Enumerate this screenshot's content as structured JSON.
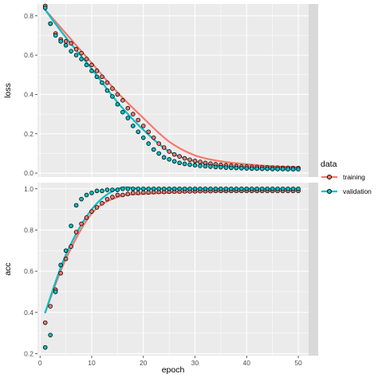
{
  "chart_data": {
    "type": "line",
    "title": "",
    "xlabel": "epoch",
    "x_ticks": [
      0,
      10,
      20,
      30,
      40,
      50
    ],
    "xlim": [
      -0.5,
      52
    ],
    "grid": true,
    "legend": {
      "title": "data",
      "placement": "right",
      "entries": [
        {
          "label": "training",
          "color": "#F8766D"
        },
        {
          "label": "validation",
          "color": "#00BFC4"
        }
      ]
    },
    "colors": {
      "training": "#F8766D",
      "validation": "#00BFC4"
    },
    "panels": [
      {
        "name": "loss",
        "ylabel": "loss",
        "ylim": [
          -0.02,
          0.86
        ],
        "y_ticks": [
          0.0,
          0.2,
          0.4,
          0.6,
          0.8
        ],
        "y_tick_labels": [
          "0.0",
          "0.2",
          "0.4",
          "0.6",
          "0.8"
        ],
        "series": [
          {
            "name": "training",
            "points": [
              [
                1,
                0.85
              ],
              [
                2,
                0.76
              ],
              [
                3,
                0.71
              ],
              [
                4,
                0.68
              ],
              [
                5,
                0.67
              ],
              [
                6,
                0.66
              ],
              [
                7,
                0.63
              ],
              [
                8,
                0.61
              ],
              [
                9,
                0.58
              ],
              [
                10,
                0.55
              ],
              [
                11,
                0.52
              ],
              [
                12,
                0.49
              ],
              [
                13,
                0.46
              ],
              [
                14,
                0.43
              ],
              [
                15,
                0.4
              ],
              [
                16,
                0.37
              ],
              [
                17,
                0.33
              ],
              [
                18,
                0.3
              ],
              [
                19,
                0.27
              ],
              [
                20,
                0.24
              ],
              [
                21,
                0.21
              ],
              [
                22,
                0.18
              ],
              [
                23,
                0.15
              ],
              [
                24,
                0.13
              ],
              [
                25,
                0.11
              ],
              [
                26,
                0.095
              ],
              [
                27,
                0.085
              ],
              [
                28,
                0.075
              ],
              [
                29,
                0.068
              ],
              [
                30,
                0.062
              ],
              [
                31,
                0.057
              ],
              [
                32,
                0.052
              ],
              [
                33,
                0.048
              ],
              [
                34,
                0.045
              ],
              [
                35,
                0.042
              ],
              [
                36,
                0.04
              ],
              [
                37,
                0.038
              ],
              [
                38,
                0.036
              ],
              [
                39,
                0.034
              ],
              [
                40,
                0.033
              ],
              [
                41,
                0.032
              ],
              [
                42,
                0.031
              ],
              [
                43,
                0.03
              ],
              [
                44,
                0.029
              ],
              [
                45,
                0.028
              ],
              [
                46,
                0.028
              ],
              [
                47,
                0.027
              ],
              [
                48,
                0.027
              ],
              [
                49,
                0.026
              ],
              [
                50,
                0.026
              ]
            ],
            "smooth": [
              [
                1,
                0.83
              ],
              [
                5,
                0.71
              ],
              [
                10,
                0.56
              ],
              [
                15,
                0.41
              ],
              [
                20,
                0.28
              ],
              [
                25,
                0.16
              ],
              [
                30,
                0.09
              ],
              [
                35,
                0.06
              ],
              [
                40,
                0.045
              ],
              [
                45,
                0.035
              ],
              [
                50,
                0.03
              ]
            ]
          },
          {
            "name": "validation",
            "points": [
              [
                1,
                0.84
              ],
              [
                2,
                0.76
              ],
              [
                3,
                0.7
              ],
              [
                4,
                0.67
              ],
              [
                5,
                0.65
              ],
              [
                6,
                0.62
              ],
              [
                7,
                0.6
              ],
              [
                8,
                0.58
              ],
              [
                9,
                0.55
              ],
              [
                10,
                0.52
              ],
              [
                11,
                0.49
              ],
              [
                12,
                0.46
              ],
              [
                13,
                0.42
              ],
              [
                14,
                0.39
              ],
              [
                15,
                0.35
              ],
              [
                16,
                0.31
              ],
              [
                17,
                0.28
              ],
              [
                18,
                0.24
              ],
              [
                19,
                0.21
              ],
              [
                20,
                0.18
              ],
              [
                21,
                0.15
              ],
              [
                22,
                0.12
              ],
              [
                23,
                0.1
              ],
              [
                24,
                0.08
              ],
              [
                25,
                0.07
              ],
              [
                26,
                0.06
              ],
              [
                27,
                0.052
              ],
              [
                28,
                0.047
              ],
              [
                29,
                0.043
              ],
              [
                30,
                0.04
              ],
              [
                31,
                0.037
              ],
              [
                32,
                0.035
              ],
              [
                33,
                0.033
              ],
              [
                34,
                0.031
              ],
              [
                35,
                0.03
              ],
              [
                36,
                0.028
              ],
              [
                37,
                0.027
              ],
              [
                38,
                0.026
              ],
              [
                39,
                0.025
              ],
              [
                40,
                0.024
              ],
              [
                41,
                0.023
              ],
              [
                42,
                0.023
              ],
              [
                43,
                0.022
              ],
              [
                44,
                0.022
              ],
              [
                45,
                0.021
              ],
              [
                46,
                0.021
              ],
              [
                47,
                0.021
              ],
              [
                48,
                0.02
              ],
              [
                49,
                0.02
              ],
              [
                50,
                0.02
              ]
            ],
            "smooth": [
              [
                1,
                0.83
              ],
              [
                5,
                0.69
              ],
              [
                10,
                0.53
              ],
              [
                15,
                0.36
              ],
              [
                20,
                0.22
              ],
              [
                25,
                0.11
              ],
              [
                30,
                0.06
              ],
              [
                35,
                0.035
              ],
              [
                40,
                0.025
              ],
              [
                45,
                0.02
              ],
              [
                50,
                0.018
              ]
            ]
          }
        ]
      },
      {
        "name": "acc",
        "ylabel": "acc",
        "ylim": [
          0.19,
          1.03
        ],
        "y_ticks": [
          0.2,
          0.4,
          0.6,
          0.8,
          1.0
        ],
        "y_tick_labels": [
          "0.2",
          "0.4",
          "0.6",
          "0.8",
          "1.0"
        ],
        "series": [
          {
            "name": "training",
            "points": [
              [
                1,
                0.35
              ],
              [
                2,
                0.43
              ],
              [
                3,
                0.51
              ],
              [
                4,
                0.59
              ],
              [
                5,
                0.66
              ],
              [
                6,
                0.72
              ],
              [
                7,
                0.79
              ],
              [
                8,
                0.83
              ],
              [
                9,
                0.86
              ],
              [
                10,
                0.89
              ],
              [
                11,
                0.91
              ],
              [
                12,
                0.93
              ],
              [
                13,
                0.95
              ],
              [
                14,
                0.96
              ],
              [
                15,
                0.97
              ],
              [
                16,
                0.97
              ],
              [
                17,
                0.975
              ],
              [
                18,
                0.98
              ],
              [
                19,
                0.98
              ],
              [
                20,
                0.982
              ],
              [
                21,
                0.983
              ],
              [
                22,
                0.984
              ],
              [
                23,
                0.985
              ],
              [
                24,
                0.985
              ],
              [
                25,
                0.986
              ],
              [
                26,
                0.987
              ],
              [
                27,
                0.987
              ],
              [
                28,
                0.988
              ],
              [
                29,
                0.988
              ],
              [
                30,
                0.988
              ],
              [
                31,
                0.989
              ],
              [
                32,
                0.989
              ],
              [
                33,
                0.989
              ],
              [
                34,
                0.99
              ],
              [
                35,
                0.99
              ],
              [
                36,
                0.99
              ],
              [
                37,
                0.99
              ],
              [
                38,
                0.99
              ],
              [
                39,
                0.99
              ],
              [
                40,
                0.99
              ],
              [
                41,
                0.99
              ],
              [
                42,
                0.99
              ],
              [
                43,
                0.99
              ],
              [
                44,
                0.99
              ],
              [
                45,
                0.99
              ],
              [
                46,
                0.99
              ],
              [
                47,
                0.99
              ],
              [
                48,
                0.99
              ],
              [
                49,
                0.99
              ],
              [
                50,
                0.99
              ]
            ],
            "smooth": [
              [
                1,
                0.4
              ],
              [
                5,
                0.66
              ],
              [
                10,
                0.88
              ],
              [
                15,
                0.96
              ],
              [
                20,
                0.975
              ],
              [
                30,
                0.985
              ],
              [
                40,
                0.988
              ],
              [
                50,
                0.99
              ]
            ]
          },
          {
            "name": "validation",
            "points": [
              [
                1,
                0.23
              ],
              [
                2,
                0.29
              ],
              [
                3,
                0.5
              ],
              [
                4,
                0.63
              ],
              [
                5,
                0.7
              ],
              [
                6,
                0.82
              ],
              [
                7,
                0.92
              ],
              [
                8,
                0.95
              ],
              [
                9,
                0.97
              ],
              [
                10,
                0.98
              ],
              [
                11,
                0.99
              ],
              [
                12,
                0.99
              ],
              [
                13,
                0.995
              ],
              [
                14,
                0.995
              ],
              [
                15,
                0.995
              ],
              [
                16,
                1.0
              ],
              [
                17,
                1.0
              ],
              [
                18,
                1.0
              ],
              [
                19,
                1.0
              ],
              [
                20,
                1.0
              ],
              [
                21,
                1.0
              ],
              [
                22,
                1.0
              ],
              [
                23,
                1.0
              ],
              [
                24,
                1.0
              ],
              [
                25,
                1.0
              ],
              [
                26,
                1.0
              ],
              [
                27,
                1.0
              ],
              [
                28,
                1.0
              ],
              [
                29,
                1.0
              ],
              [
                30,
                1.0
              ],
              [
                31,
                1.0
              ],
              [
                32,
                1.0
              ],
              [
                33,
                1.0
              ],
              [
                34,
                1.0
              ],
              [
                35,
                1.0
              ],
              [
                36,
                1.0
              ],
              [
                37,
                1.0
              ],
              [
                38,
                1.0
              ],
              [
                39,
                1.0
              ],
              [
                40,
                1.0
              ],
              [
                41,
                1.0
              ],
              [
                42,
                1.0
              ],
              [
                43,
                1.0
              ],
              [
                44,
                1.0
              ],
              [
                45,
                1.0
              ],
              [
                46,
                1.0
              ],
              [
                47,
                1.0
              ],
              [
                48,
                1.0
              ],
              [
                49,
                1.0
              ],
              [
                50,
                1.0
              ]
            ],
            "smooth": [
              [
                1,
                0.4
              ],
              [
                5,
                0.68
              ],
              [
                10,
                0.9
              ],
              [
                15,
                1.0
              ],
              [
                20,
                1.0
              ],
              [
                30,
                1.0
              ],
              [
                40,
                1.0
              ],
              [
                50,
                1.0
              ]
            ]
          }
        ]
      }
    ]
  }
}
